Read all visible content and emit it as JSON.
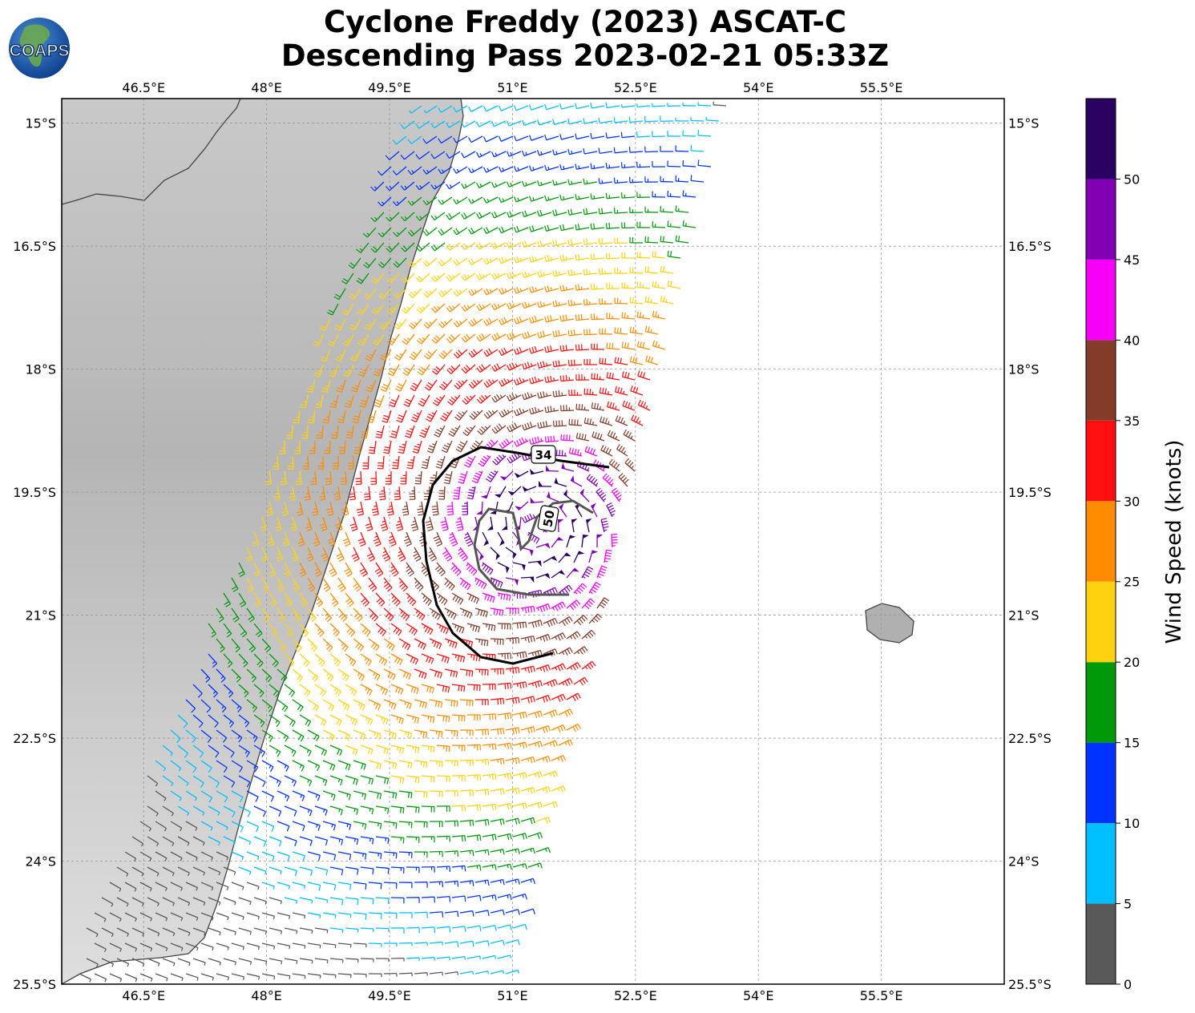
{
  "title": {
    "line1": "Cyclone Freddy (2023) ASCAT-C",
    "line2": "Descending Pass 2023-02-21 05:33Z"
  },
  "logo": {
    "text": "COAPS",
    "icon": "globe-icon"
  },
  "map": {
    "lon_range": [
      45.5,
      57.0
    ],
    "lat_range": [
      -25.5,
      -14.7
    ],
    "lon_ticks": [
      "46.5°E",
      "48°E",
      "49.5°E",
      "51°E",
      "52.5°E",
      "54°E",
      "55.5°E"
    ],
    "lon_tick_values": [
      46.5,
      48,
      49.5,
      51,
      52.5,
      54,
      55.5
    ],
    "lat_ticks": [
      "15°S",
      "16.5°S",
      "18°S",
      "19.5°S",
      "21°S",
      "22.5°S",
      "24°S",
      "25.5°S"
    ],
    "lat_tick_values": [
      -15,
      -16.5,
      -18,
      -19.5,
      -21,
      -22.5,
      -24,
      -25.5
    ],
    "gridlines": true,
    "storm_center": {
      "lon": 51.3,
      "lat": -19.9
    },
    "contours": [
      {
        "label": "34",
        "value": 34,
        "color": "#000000"
      },
      {
        "label": "50",
        "value": 50,
        "color": "#555555"
      }
    ]
  },
  "colorbar": {
    "label": "Wind Speed (knots)",
    "ticks": [
      "0",
      "5",
      "10",
      "15",
      "20",
      "25",
      "30",
      "35",
      "40",
      "45",
      "50"
    ],
    "tick_values": [
      0,
      5,
      10,
      15,
      20,
      25,
      30,
      35,
      40,
      45,
      50
    ],
    "max": 55,
    "bins": [
      {
        "min": 0,
        "max": 5,
        "color": "#595959"
      },
      {
        "min": 5,
        "max": 10,
        "color": "#00bfff"
      },
      {
        "min": 10,
        "max": 15,
        "color": "#0033ff"
      },
      {
        "min": 15,
        "max": 20,
        "color": "#00990a"
      },
      {
        "min": 20,
        "max": 25,
        "color": "#ffd20f"
      },
      {
        "min": 25,
        "max": 30,
        "color": "#ff8c00"
      },
      {
        "min": 30,
        "max": 35,
        "color": "#ff0f0f"
      },
      {
        "min": 35,
        "max": 40,
        "color": "#843c2a"
      },
      {
        "min": 40,
        "max": 45,
        "color": "#f700f7"
      },
      {
        "min": 45,
        "max": 50,
        "color": "#8200b4"
      },
      {
        "min": 50,
        "max": 55,
        "color": "#2a0060"
      }
    ]
  },
  "land_color": "#dcdcdc",
  "coast_color": "#444444"
}
